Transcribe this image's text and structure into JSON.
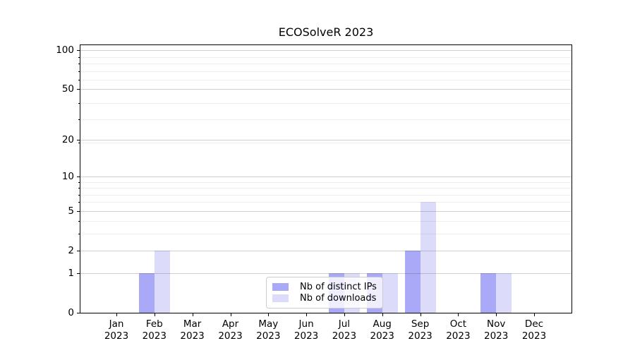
{
  "chart_data": {
    "type": "bar",
    "title": "ECOSolveR 2023",
    "x_axis": {
      "months": [
        "Jan",
        "Feb",
        "Mar",
        "Apr",
        "May",
        "Jun",
        "Jul",
        "Aug",
        "Sep",
        "Oct",
        "Nov",
        "Dec"
      ],
      "year": "2023"
    },
    "y_axis": {
      "scale": "log10(1+value)",
      "major_ticks": [
        0,
        1,
        2,
        5,
        10,
        20,
        50,
        100
      ],
      "minor_gridlines": [
        3,
        4,
        6,
        7,
        8,
        9,
        19,
        29,
        39,
        59,
        69,
        79,
        89
      ],
      "ylim": [
        0,
        111
      ],
      "grid": "on"
    },
    "series": [
      {
        "name": "Nb of distinct IPs",
        "color": "#a9a9f8",
        "values": [
          0,
          1,
          0,
          0,
          0,
          0,
          1,
          1,
          2,
          0,
          1,
          0
        ]
      },
      {
        "name": "Nb of downloads",
        "color": "#dcdcfa",
        "values": [
          0,
          2,
          0,
          0,
          0,
          0,
          1,
          1,
          6,
          0,
          1,
          0
        ]
      }
    ],
    "legend": {
      "location": "lower center"
    },
    "colors": {
      "axis": "#000000",
      "major_grid": "#cbcbcb",
      "minor_grid": "#ececec",
      "background": "#ffffff"
    }
  }
}
